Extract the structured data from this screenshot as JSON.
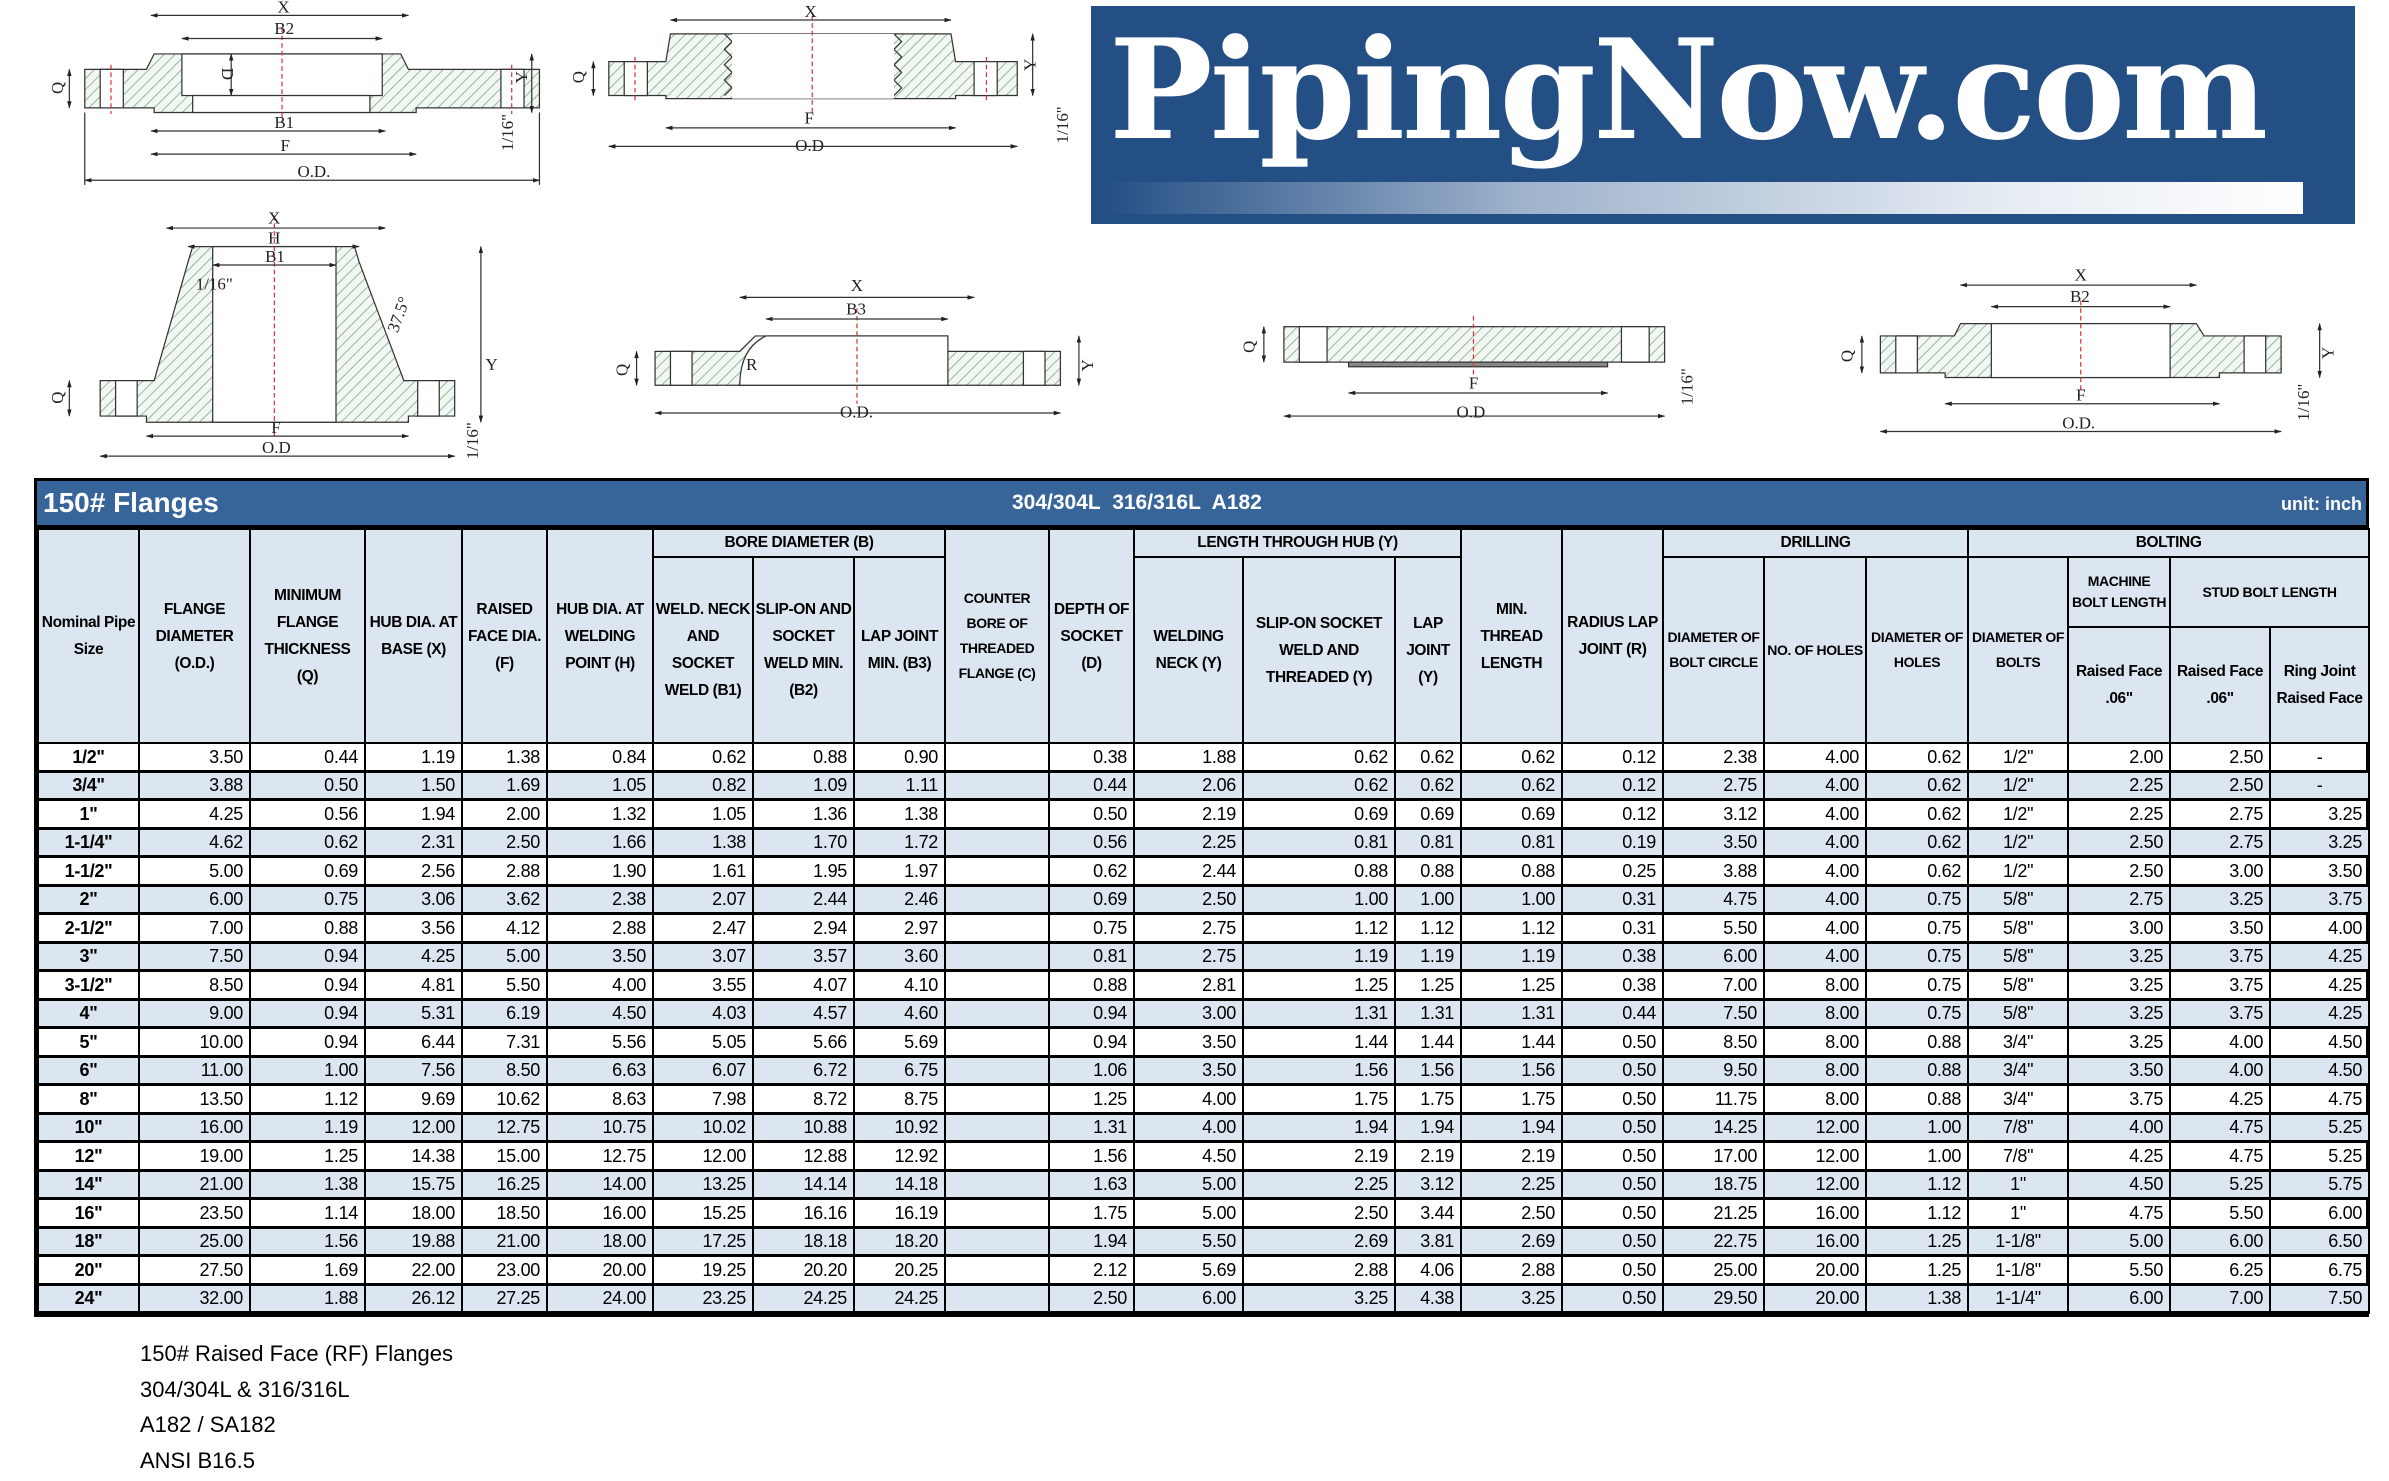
{
  "logo": {
    "text": "PipingNow.com",
    "brand_color": "#244f85"
  },
  "diagrams": {
    "d1": {
      "x": "X",
      "b2": "B2",
      "d": "D",
      "b1": "B1",
      "f": "F",
      "od": "O.D.",
      "q": "Q",
      "y": "Y",
      "rf": "1/16\""
    },
    "d2": {
      "x": "X",
      "f": "F",
      "od": "O.D",
      "q": "Q",
      "y": "Y",
      "rf": "1/16\""
    },
    "d3": {
      "x": "X",
      "h": "H",
      "b1": "B1",
      "rf_top": "1/16\"",
      "angle": "37.5°",
      "f": "F",
      "od": "O.D",
      "q": "Q",
      "y": "Y",
      "rf": "1/16\""
    },
    "d4": {
      "x": "X",
      "b3": "B3",
      "r": "R",
      "od": "O.D.",
      "q": "Q",
      "y": "Y"
    },
    "d5": {
      "f": "F",
      "od": "O.D",
      "q": "Q",
      "rf": "1/16\""
    },
    "d6": {
      "x": "X",
      "b2": "B2",
      "f": "F",
      "od": "O.D.",
      "q": "Q",
      "y": "Y",
      "rf": "1/16\""
    }
  },
  "table": {
    "title": "150# Flanges",
    "materials": "304/304L  316/316L  A182",
    "unit": "unit: inch",
    "header_color": "#37659a",
    "alt_row_color": "#dce6f1",
    "groups": {
      "bore": "BORE DIAMETER (B)",
      "length": "LENGTH THROUGH HUB (Y)",
      "drilling": "DRILLING",
      "bolting": "BOLTING",
      "stud": "STUD BOLT LENGTH"
    },
    "columns": {
      "nps": "Nominal Pipe Size",
      "od": "FLANGE DIAMETER (O.D.)",
      "q": "MINIMUM FLANGE THICKNESS (Q)",
      "x": "HUB DIA. AT BASE (X)",
      "f": "RAISED FACE DIA. (F)",
      "h": "HUB DIA. AT WELDING POINT (H)",
      "b1": "WELD. NECK AND SOCKET WELD (B1)",
      "b2": "SLIP-ON AND SOCKET WELD MIN. (B2)",
      "b3": "LAP JOINT MIN. (B3)",
      "c": "COUNTER BORE OF THREADED FLANGE (C)",
      "d": "DEPTH OF SOCKET (D)",
      "y_wn": "WELDING NECK (Y)",
      "y_so": "SLIP-ON SOCKET WELD AND THREADED (Y)",
      "y_lj": "LAP JOINT (Y)",
      "thread": "MIN. THREAD LENGTH",
      "r": "RADIUS LAP JOINT (R)",
      "bc": "DIAMETER OF BOLT CIRCLE",
      "holes": "NO. OF HOLES",
      "hole_dia": "DIAMETER OF HOLES",
      "bolt_dia": "DIAMETER OF BOLTS",
      "machine": "MACHINE BOLT LENGTH",
      "machine_rf": "Raised Face .06\"",
      "stud_rf": "Raised Face .06\"",
      "stud_rj": "Ring Joint Raised Face"
    },
    "rows": [
      [
        "1/2\"",
        "3.50",
        "0.44",
        "1.19",
        "1.38",
        "0.84",
        "0.62",
        "0.88",
        "0.90",
        "",
        "0.38",
        "1.88",
        "0.62",
        "0.62",
        "0.62",
        "0.12",
        "2.38",
        "4.00",
        "0.62",
        "1/2\"",
        "2.00",
        "2.50",
        "-"
      ],
      [
        "3/4\"",
        "3.88",
        "0.50",
        "1.50",
        "1.69",
        "1.05",
        "0.82",
        "1.09",
        "1.11",
        "",
        "0.44",
        "2.06",
        "0.62",
        "0.62",
        "0.62",
        "0.12",
        "2.75",
        "4.00",
        "0.62",
        "1/2\"",
        "2.25",
        "2.50",
        "-"
      ],
      [
        "1\"",
        "4.25",
        "0.56",
        "1.94",
        "2.00",
        "1.32",
        "1.05",
        "1.36",
        "1.38",
        "",
        "0.50",
        "2.19",
        "0.69",
        "0.69",
        "0.69",
        "0.12",
        "3.12",
        "4.00",
        "0.62",
        "1/2\"",
        "2.25",
        "2.75",
        "3.25"
      ],
      [
        "1-1/4\"",
        "4.62",
        "0.62",
        "2.31",
        "2.50",
        "1.66",
        "1.38",
        "1.70",
        "1.72",
        "",
        "0.56",
        "2.25",
        "0.81",
        "0.81",
        "0.81",
        "0.19",
        "3.50",
        "4.00",
        "0.62",
        "1/2\"",
        "2.50",
        "2.75",
        "3.25"
      ],
      [
        "1-1/2\"",
        "5.00",
        "0.69",
        "2.56",
        "2.88",
        "1.90",
        "1.61",
        "1.95",
        "1.97",
        "",
        "0.62",
        "2.44",
        "0.88",
        "0.88",
        "0.88",
        "0.25",
        "3.88",
        "4.00",
        "0.62",
        "1/2\"",
        "2.50",
        "3.00",
        "3.50"
      ],
      [
        "2\"",
        "6.00",
        "0.75",
        "3.06",
        "3.62",
        "2.38",
        "2.07",
        "2.44",
        "2.46",
        "",
        "0.69",
        "2.50",
        "1.00",
        "1.00",
        "1.00",
        "0.31",
        "4.75",
        "4.00",
        "0.75",
        "5/8\"",
        "2.75",
        "3.25",
        "3.75"
      ],
      [
        "2-1/2\"",
        "7.00",
        "0.88",
        "3.56",
        "4.12",
        "2.88",
        "2.47",
        "2.94",
        "2.97",
        "",
        "0.75",
        "2.75",
        "1.12",
        "1.12",
        "1.12",
        "0.31",
        "5.50",
        "4.00",
        "0.75",
        "5/8\"",
        "3.00",
        "3.50",
        "4.00"
      ],
      [
        "3\"",
        "7.50",
        "0.94",
        "4.25",
        "5.00",
        "3.50",
        "3.07",
        "3.57",
        "3.60",
        "",
        "0.81",
        "2.75",
        "1.19",
        "1.19",
        "1.19",
        "0.38",
        "6.00",
        "4.00",
        "0.75",
        "5/8\"",
        "3.25",
        "3.75",
        "4.25"
      ],
      [
        "3-1/2\"",
        "8.50",
        "0.94",
        "4.81",
        "5.50",
        "4.00",
        "3.55",
        "4.07",
        "4.10",
        "",
        "0.88",
        "2.81",
        "1.25",
        "1.25",
        "1.25",
        "0.38",
        "7.00",
        "8.00",
        "0.75",
        "5/8\"",
        "3.25",
        "3.75",
        "4.25"
      ],
      [
        "4\"",
        "9.00",
        "0.94",
        "5.31",
        "6.19",
        "4.50",
        "4.03",
        "4.57",
        "4.60",
        "",
        "0.94",
        "3.00",
        "1.31",
        "1.31",
        "1.31",
        "0.44",
        "7.50",
        "8.00",
        "0.75",
        "5/8\"",
        "3.25",
        "3.75",
        "4.25"
      ],
      [
        "5\"",
        "10.00",
        "0.94",
        "6.44",
        "7.31",
        "5.56",
        "5.05",
        "5.66",
        "5.69",
        "",
        "0.94",
        "3.50",
        "1.44",
        "1.44",
        "1.44",
        "0.50",
        "8.50",
        "8.00",
        "0.88",
        "3/4\"",
        "3.25",
        "4.00",
        "4.50"
      ],
      [
        "6\"",
        "11.00",
        "1.00",
        "7.56",
        "8.50",
        "6.63",
        "6.07",
        "6.72",
        "6.75",
        "",
        "1.06",
        "3.50",
        "1.56",
        "1.56",
        "1.56",
        "0.50",
        "9.50",
        "8.00",
        "0.88",
        "3/4\"",
        "3.50",
        "4.00",
        "4.50"
      ],
      [
        "8\"",
        "13.50",
        "1.12",
        "9.69",
        "10.62",
        "8.63",
        "7.98",
        "8.72",
        "8.75",
        "",
        "1.25",
        "4.00",
        "1.75",
        "1.75",
        "1.75",
        "0.50",
        "11.75",
        "8.00",
        "0.88",
        "3/4\"",
        "3.75",
        "4.25",
        "4.75"
      ],
      [
        "10\"",
        "16.00",
        "1.19",
        "12.00",
        "12.75",
        "10.75",
        "10.02",
        "10.88",
        "10.92",
        "",
        "1.31",
        "4.00",
        "1.94",
        "1.94",
        "1.94",
        "0.50",
        "14.25",
        "12.00",
        "1.00",
        "7/8\"",
        "4.00",
        "4.75",
        "5.25"
      ],
      [
        "12\"",
        "19.00",
        "1.25",
        "14.38",
        "15.00",
        "12.75",
        "12.00",
        "12.88",
        "12.92",
        "",
        "1.56",
        "4.50",
        "2.19",
        "2.19",
        "2.19",
        "0.50",
        "17.00",
        "12.00",
        "1.00",
        "7/8\"",
        "4.25",
        "4.75",
        "5.25"
      ],
      [
        "14\"",
        "21.00",
        "1.38",
        "15.75",
        "16.25",
        "14.00",
        "13.25",
        "14.14",
        "14.18",
        "",
        "1.63",
        "5.00",
        "2.25",
        "3.12",
        "2.25",
        "0.50",
        "18.75",
        "12.00",
        "1.12",
        "1\"",
        "4.50",
        "5.25",
        "5.75"
      ],
      [
        "16\"",
        "23.50",
        "1.14",
        "18.00",
        "18.50",
        "16.00",
        "15.25",
        "16.16",
        "16.19",
        "",
        "1.75",
        "5.00",
        "2.50",
        "3.44",
        "2.50",
        "0.50",
        "21.25",
        "16.00",
        "1.12",
        "1\"",
        "4.75",
        "5.50",
        "6.00"
      ],
      [
        "18\"",
        "25.00",
        "1.56",
        "19.88",
        "21.00",
        "18.00",
        "17.25",
        "18.18",
        "18.20",
        "",
        "1.94",
        "5.50",
        "2.69",
        "3.81",
        "2.69",
        "0.50",
        "22.75",
        "16.00",
        "1.25",
        "1-1/8\"",
        "5.00",
        "6.00",
        "6.50"
      ],
      [
        "20\"",
        "27.50",
        "1.69",
        "22.00",
        "23.00",
        "20.00",
        "19.25",
        "20.20",
        "20.25",
        "",
        "2.12",
        "5.69",
        "2.88",
        "4.06",
        "2.88",
        "0.50",
        "25.00",
        "20.00",
        "1.25",
        "1-1/8\"",
        "5.50",
        "6.25",
        "6.75"
      ],
      [
        "24\"",
        "32.00",
        "1.88",
        "26.12",
        "27.25",
        "24.00",
        "23.25",
        "24.25",
        "24.25",
        "",
        "2.50",
        "6.00",
        "3.25",
        "4.38",
        "3.25",
        "0.50",
        "29.50",
        "20.00",
        "1.38",
        "1-1/4\"",
        "6.00",
        "7.00",
        "7.50"
      ]
    ]
  },
  "notes": [
    "150# Raised Face (RF) Flanges",
    "304/304L & 316/316L",
    "A182 / SA182",
    "ANSI B16.5"
  ]
}
